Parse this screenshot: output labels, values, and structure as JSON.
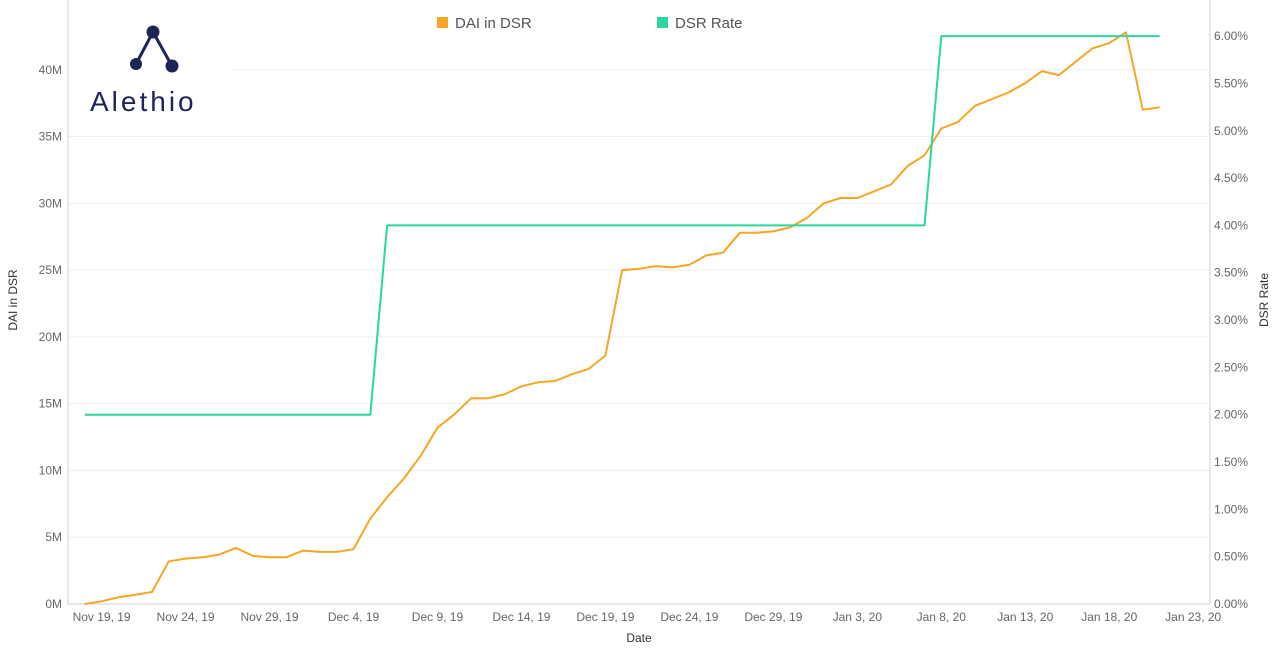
{
  "logo": {
    "text": "Alethio"
  },
  "chart_data": {
    "type": "line",
    "xlabel": "Date",
    "ylabel_left": "DAI in DSR",
    "ylabel_right": "DSR Rate",
    "legend": [
      "DAI in DSR",
      "DSR Rate"
    ],
    "legend_position": "top-center",
    "x_range": [
      "2019-11-17",
      "2020-01-24"
    ],
    "x_ticks": [
      "Nov 19, 19",
      "Nov 24, 19",
      "Nov 29, 19",
      "Dec 4, 19",
      "Dec 9, 19",
      "Dec 14, 19",
      "Dec 19, 19",
      "Dec 24, 19",
      "Dec 29, 19",
      "Jan 3, 20",
      "Jan 8, 20",
      "Jan 13, 20",
      "Jan 18, 20",
      "Jan 23, 20"
    ],
    "y_left_ticks": [
      "0M",
      "5M",
      "10M",
      "15M",
      "20M",
      "25M",
      "30M",
      "35M",
      "40M"
    ],
    "y_left_range": [
      0,
      45
    ],
    "y_right_ticks": [
      "0.00%",
      "0.50%",
      "1.00%",
      "1.50%",
      "2.00%",
      "2.50%",
      "3.00%",
      "3.50%",
      "4.00%",
      "4.50%",
      "5.00%",
      "5.50%",
      "6.00%"
    ],
    "y_right_range": [
      0,
      6.35
    ],
    "grid": true,
    "colors": {
      "dai": "#f5a623",
      "dsr": "#2bd6a2"
    },
    "series": [
      {
        "name": "DAI in DSR",
        "axis": "left",
        "unit": "M",
        "points": [
          [
            "2019-11-18",
            0.0
          ],
          [
            "2019-11-19",
            0.2
          ],
          [
            "2019-11-20",
            0.5
          ],
          [
            "2019-11-21",
            0.7
          ],
          [
            "2019-11-22",
            0.9
          ],
          [
            "2019-11-23",
            3.2
          ],
          [
            "2019-11-24",
            3.4
          ],
          [
            "2019-11-25",
            3.5
          ],
          [
            "2019-11-26",
            3.7
          ],
          [
            "2019-11-27",
            4.2
          ],
          [
            "2019-11-28",
            3.6
          ],
          [
            "2019-11-29",
            3.5
          ],
          [
            "2019-11-30",
            3.5
          ],
          [
            "2019-12-01",
            4.0
          ],
          [
            "2019-12-02",
            3.9
          ],
          [
            "2019-12-03",
            3.9
          ],
          [
            "2019-12-04",
            4.1
          ],
          [
            "2019-12-05",
            6.4
          ],
          [
            "2019-12-06",
            8.0
          ],
          [
            "2019-12-07",
            9.4
          ],
          [
            "2019-12-08",
            11.1
          ],
          [
            "2019-12-09",
            13.2
          ],
          [
            "2019-12-10",
            14.2
          ],
          [
            "2019-12-11",
            15.4
          ],
          [
            "2019-12-12",
            15.4
          ],
          [
            "2019-12-13",
            15.7
          ],
          [
            "2019-12-14",
            16.3
          ],
          [
            "2019-12-15",
            16.6
          ],
          [
            "2019-12-16",
            16.7
          ],
          [
            "2019-12-17",
            17.2
          ],
          [
            "2019-12-18",
            17.6
          ],
          [
            "2019-12-19",
            18.6
          ],
          [
            "2019-12-20",
            25.0
          ],
          [
            "2019-12-21",
            25.1
          ],
          [
            "2019-12-22",
            25.3
          ],
          [
            "2019-12-23",
            25.2
          ],
          [
            "2019-12-24",
            25.4
          ],
          [
            "2019-12-25",
            26.1
          ],
          [
            "2019-12-26",
            26.3
          ],
          [
            "2019-12-27",
            27.8
          ],
          [
            "2019-12-28",
            27.8
          ],
          [
            "2019-12-29",
            27.9
          ],
          [
            "2019-12-30",
            28.2
          ],
          [
            "2019-12-31",
            28.9
          ],
          [
            "2020-01-01",
            30.0
          ],
          [
            "2020-01-02",
            30.4
          ],
          [
            "2020-01-03",
            30.4
          ],
          [
            "2020-01-04",
            30.9
          ],
          [
            "2020-01-05",
            31.4
          ],
          [
            "2020-01-06",
            32.8
          ],
          [
            "2020-01-07",
            33.6
          ],
          [
            "2020-01-08",
            35.6
          ],
          [
            "2020-01-09",
            36.1
          ],
          [
            "2020-01-10",
            37.3
          ],
          [
            "2020-01-11",
            37.8
          ],
          [
            "2020-01-12",
            38.3
          ],
          [
            "2020-01-13",
            39.0
          ],
          [
            "2020-01-14",
            39.9
          ],
          [
            "2020-01-15",
            39.6
          ],
          [
            "2020-01-16",
            40.6
          ],
          [
            "2020-01-17",
            41.6
          ],
          [
            "2020-01-18",
            42.0
          ],
          [
            "2020-01-19",
            42.8
          ],
          [
            "2020-01-20",
            37.0
          ],
          [
            "2020-01-21",
            37.2
          ]
        ]
      },
      {
        "name": "DSR Rate",
        "axis": "right",
        "unit": "%",
        "points": [
          [
            "2019-11-18",
            2.0
          ],
          [
            "2019-12-05",
            2.0
          ],
          [
            "2019-12-06",
            4.0
          ],
          [
            "2020-01-07",
            4.0
          ],
          [
            "2020-01-08",
            6.0
          ],
          [
            "2020-01-21",
            6.0
          ]
        ]
      }
    ]
  }
}
